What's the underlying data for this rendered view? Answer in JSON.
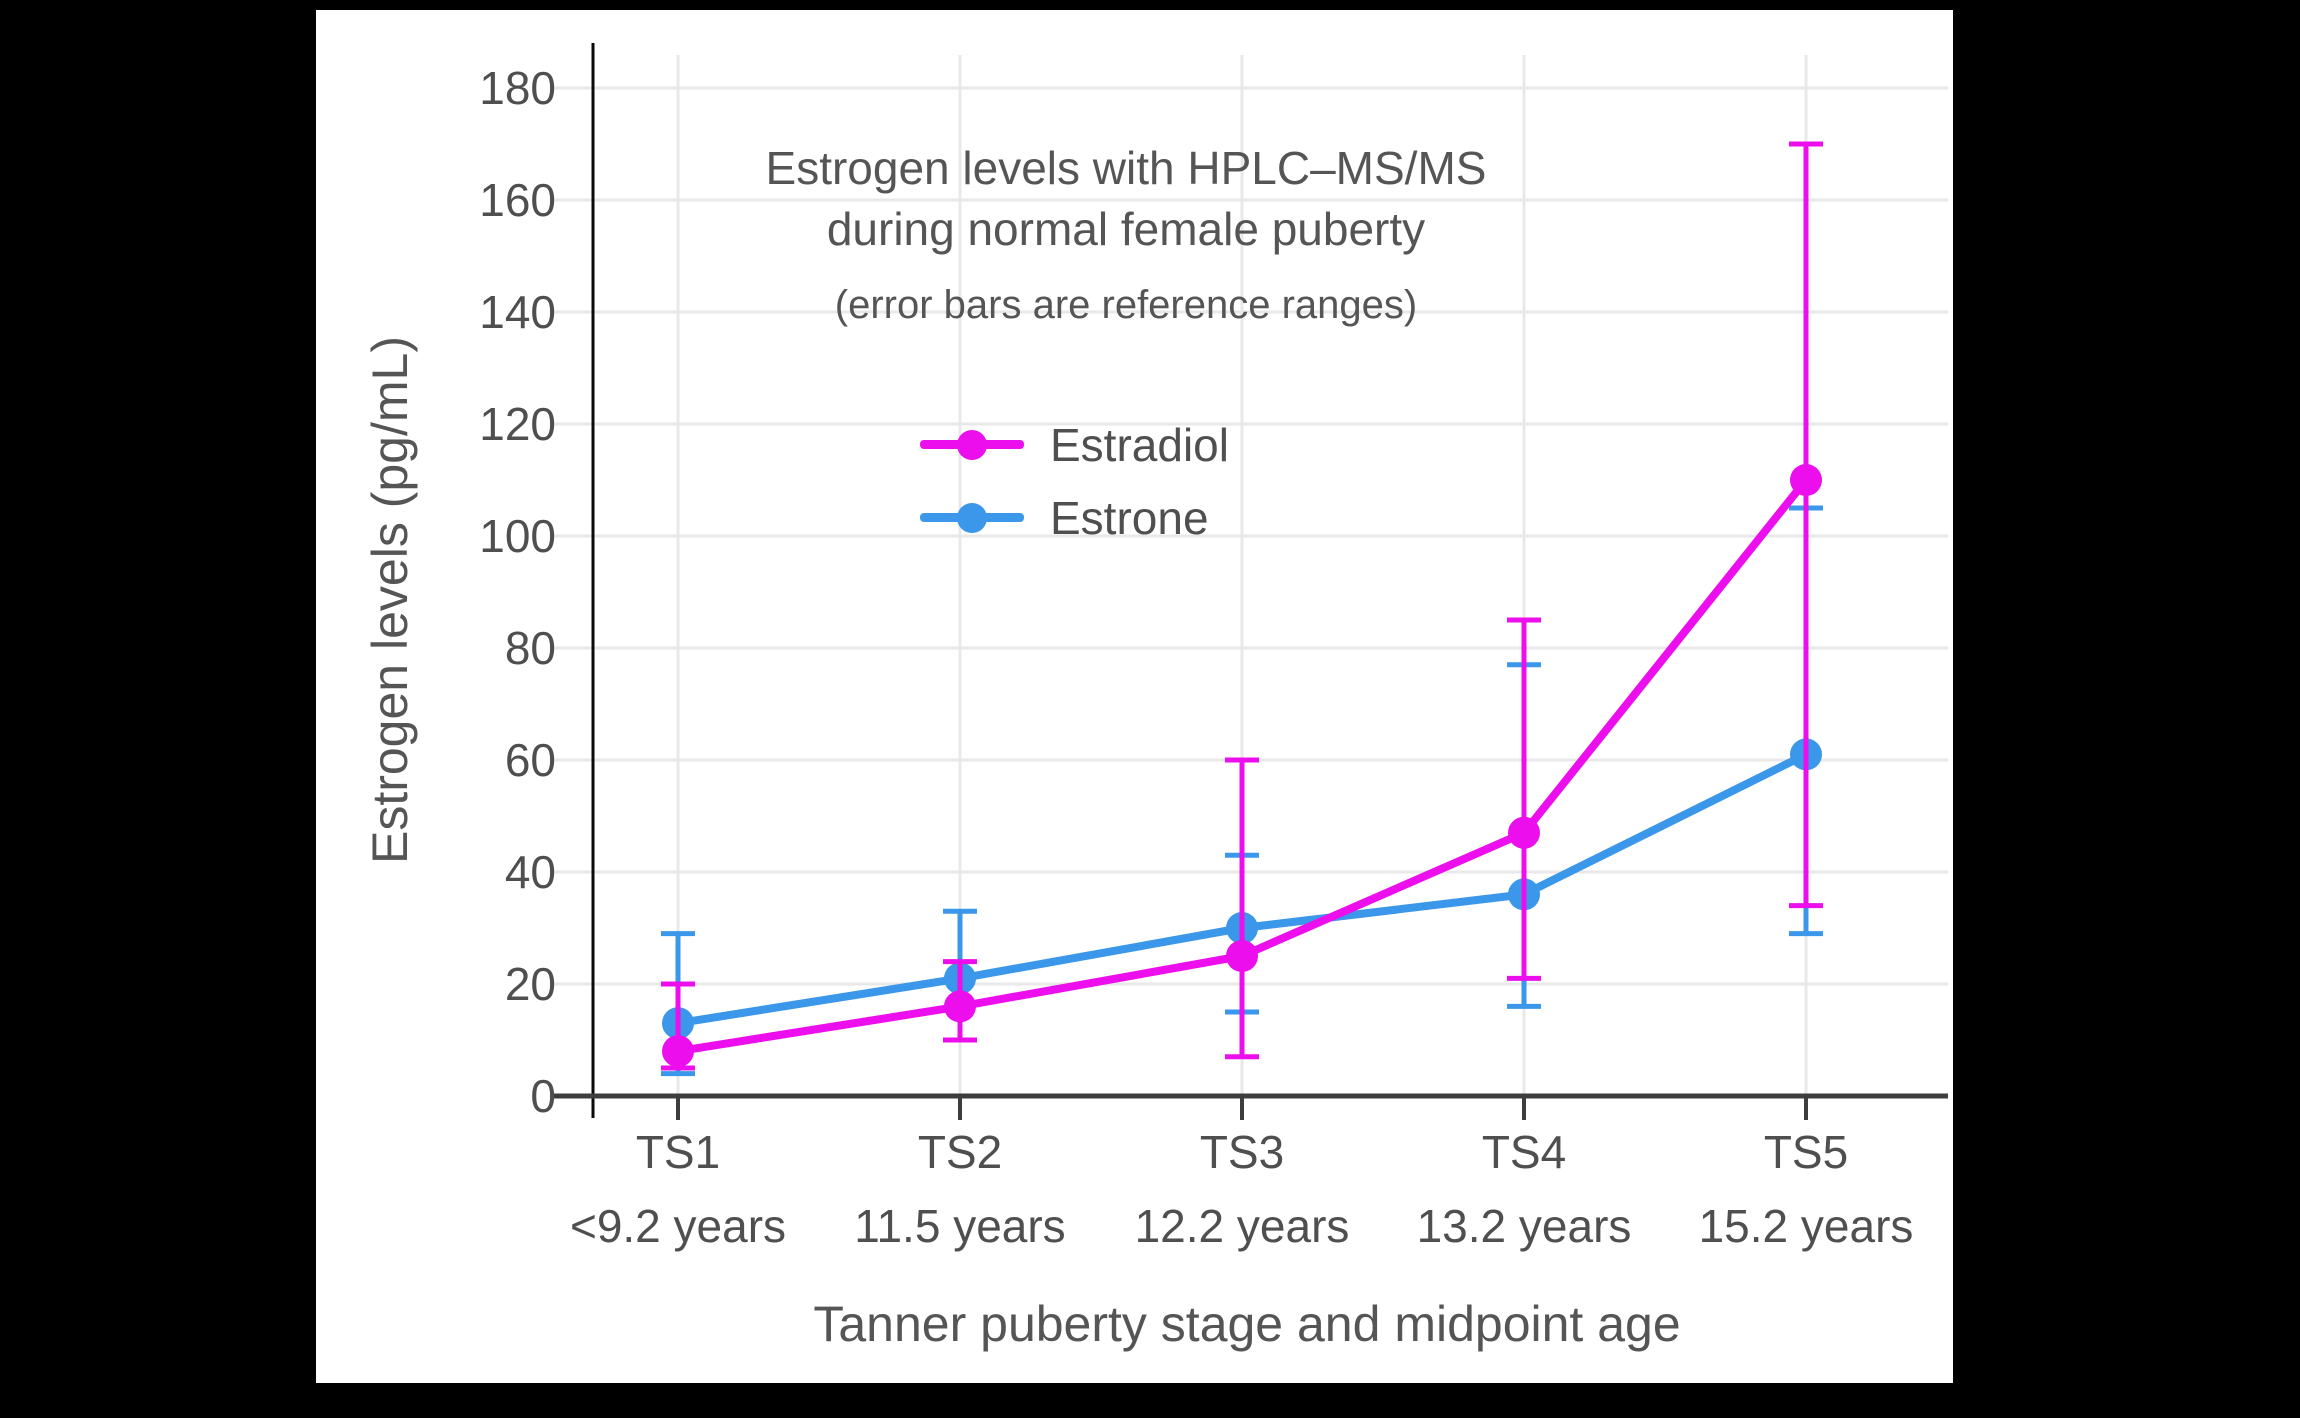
{
  "window": {
    "background_color": "#000000",
    "panel_color": "#ffffff"
  },
  "chart_data": {
    "type": "line",
    "title": "Estrogen levels with HPLC–MS/MS",
    "title_line2": "during normal female puberty",
    "subtitle": "(error bars are reference ranges)",
    "xlabel": "Tanner puberty stage and midpoint age",
    "ylabel": "Estrogen levels (pg/mL)",
    "categories": [
      "TS1",
      "TS2",
      "TS3",
      "TS4",
      "TS5"
    ],
    "category_sublabels": [
      "<9.2 years",
      "11.5 years",
      "12.2 years",
      "13.2 years",
      "15.2 years"
    ],
    "yticks": [
      0,
      20,
      40,
      60,
      80,
      100,
      120,
      140,
      160,
      180
    ],
    "ylim": [
      0,
      190
    ],
    "grid": true,
    "legend_position": "inside-upper-left",
    "error_bar_meaning": "reference ranges",
    "series": [
      {
        "name": "Estradiol",
        "color": "#ec0eec",
        "values": [
          8,
          16,
          25,
          47,
          110
        ],
        "error_low": [
          5,
          10,
          7,
          21,
          34
        ],
        "error_high": [
          20,
          24,
          60,
          85,
          170
        ]
      },
      {
        "name": "Estrone",
        "color": "#3b97e9",
        "values": [
          13,
          21,
          30,
          36,
          61
        ],
        "error_low": [
          4,
          10,
          15,
          16,
          29
        ],
        "error_high": [
          29,
          33,
          43,
          77,
          105
        ]
      }
    ]
  }
}
